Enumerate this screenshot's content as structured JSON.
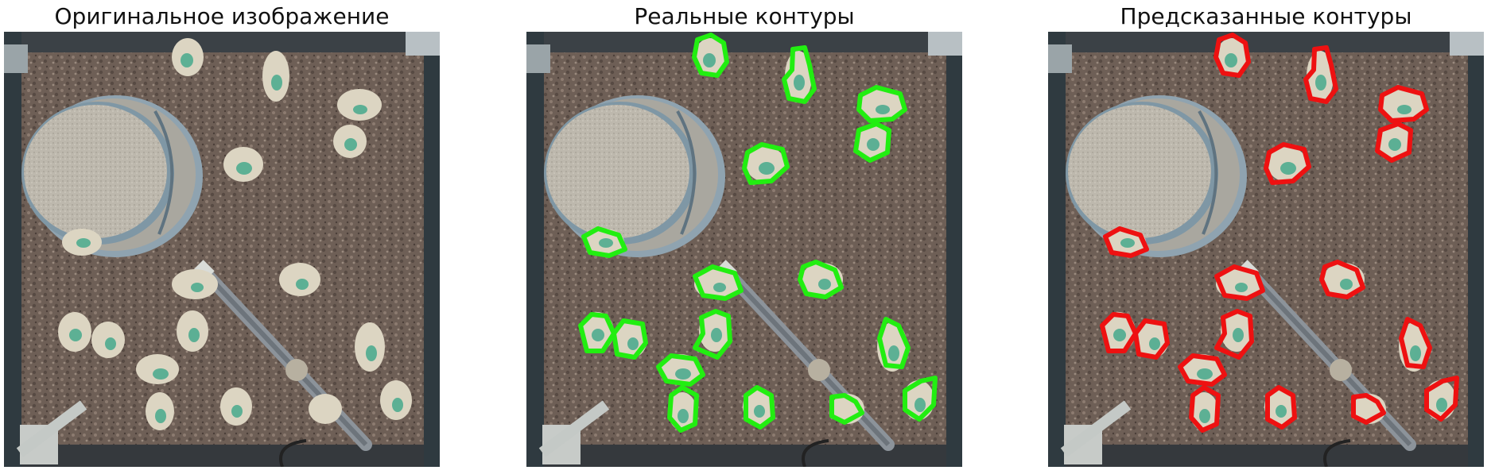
{
  "panels": [
    {
      "title": "Оригинальное изображение",
      "contour_color": null
    },
    {
      "title": "Реальные контуры",
      "contour_color": "#22ee11"
    },
    {
      "title": "Предсказанные контуры",
      "contour_color": "#ee1111"
    }
  ],
  "scene": {
    "description_colors": {
      "ground": "#7a6a5e",
      "pen_frame": "#3a3f44",
      "feeder": "#b7b6ae",
      "chick": "#d8d1bf",
      "chick_mark": "#3aa58a"
    }
  }
}
